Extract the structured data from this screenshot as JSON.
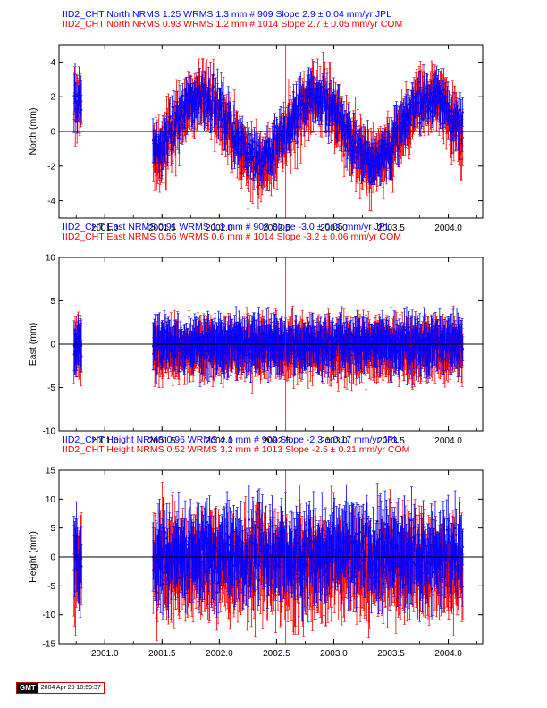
{
  "stamp": {
    "logo": "GMT",
    "timestamp": "2004 Apr 20 10:59:37"
  },
  "colors": {
    "jpl": "#0000ff",
    "com": "#ff0000",
    "axis": "#000000"
  },
  "chart_data": [
    {
      "type": "scatter",
      "title_lines": [
        "IID2_CHT North NRMS 1.25 WRMS  1.3 mm # 909 Slope    2.9 ±  0.04 mm/yr JPL",
        "IID2_CHT North NRMS 0.93 WRMS  1.2 mm # 1014 Slope    2.7 ±  0.05 mm/yr COM"
      ],
      "ylabel": "North (mm)",
      "xlim": [
        2000.6,
        2004.3
      ],
      "ylim": [
        -5,
        5
      ],
      "xticks": [
        2001.0,
        2001.5,
        2002.0,
        2002.5,
        2003.0,
        2003.5,
        2004.0
      ],
      "xticklabels": [
        "2001.0",
        "2001.5",
        "2002.0",
        "2002.5",
        "2003.0",
        "2003.5",
        "2004.0"
      ],
      "yticks": [
        -4,
        -2,
        0,
        2,
        4
      ],
      "yticklabels": [
        "-4",
        "-2",
        "0",
        "2",
        "4"
      ],
      "series": [
        {
          "name": "COM",
          "color": "#ff0000",
          "errbar": 1.2,
          "amp": 1.9,
          "offset": 0.0,
          "noise": 0.9
        },
        {
          "name": "JPL",
          "color": "#0000ff",
          "errbar": 0.9,
          "amp": 1.8,
          "offset": 0.25,
          "noise": 0.75
        }
      ],
      "signal": {
        "kind": "annual",
        "phase": 2001.6
      },
      "spike_x": 2002.58
    },
    {
      "type": "scatter",
      "title_lines": [
        "IID2_CHT East NRMS 0.91 WRMS  1.1 mm # 908 Slope   -3.0 ±  0.05 mm/yr JPL",
        "IID2_CHT East NRMS 0.56 WRMS  0.6 mm # 1014 Slope   -3.2 ±  0.06 mm/yr COM"
      ],
      "ylabel": "East (mm)",
      "xlim": [
        2000.6,
        2004.3
      ],
      "ylim": [
        -10,
        10
      ],
      "xticks": [
        2001.0,
        2001.5,
        2002.0,
        2002.5,
        2003.0,
        2003.5,
        2004.0
      ],
      "xticklabels": [
        "2001.0",
        "2001.5",
        "2002.0",
        "2002.5",
        "2003.0",
        "2003.5",
        "2004.0"
      ],
      "yticks": [
        -10,
        -5,
        0,
        5,
        10
      ],
      "yticklabels": [
        "-10",
        "-5",
        "0",
        "5",
        "10"
      ],
      "series": [
        {
          "name": "COM",
          "color": "#ff0000",
          "errbar": 2.6,
          "amp": 0.3,
          "offset": -0.5,
          "noise": 1.0
        },
        {
          "name": "JPL",
          "color": "#0000ff",
          "errbar": 2.2,
          "amp": 0.3,
          "offset": 0.0,
          "noise": 1.1
        }
      ],
      "signal": {
        "kind": "flat",
        "phase": 2001.6
      },
      "spike_x": 2002.58
    },
    {
      "type": "scatter",
      "title_lines": [
        "IID2_CHT Height NRMS 0.96 WRMS  4.1 mm # 909 Slope   -2.3 ±  0.17 mm/yr JPL",
        "IID2_CHT Height NRMS 0.52 WRMS  3.2 mm # 1013 Slope   -2.5 ±  0.21 mm/yr COM"
      ],
      "ylabel": "Height (mm)",
      "xlim": [
        2000.6,
        2004.3
      ],
      "ylim": [
        -15,
        15
      ],
      "xticks": [
        2001.0,
        2001.5,
        2002.0,
        2002.5,
        2003.0,
        2003.5,
        2004.0
      ],
      "xticklabels": [
        "2001.0",
        "2001.5",
        "2002.0",
        "2002.5",
        "2003.0",
        "2003.5",
        "2004.0"
      ],
      "yticks": [
        -15,
        -10,
        -5,
        0,
        5,
        10,
        15
      ],
      "yticklabels": [
        "-15",
        "-10",
        "-5",
        "0",
        "5",
        "10",
        "15"
      ],
      "series": [
        {
          "name": "COM",
          "color": "#ff0000",
          "errbar": 6.0,
          "amp": 1.0,
          "offset": -1.5,
          "noise": 3.5
        },
        {
          "name": "JPL",
          "color": "#0000ff",
          "errbar": 5.0,
          "amp": 1.0,
          "offset": 0.5,
          "noise": 3.8
        }
      ],
      "signal": {
        "kind": "flat",
        "phase": 2001.6
      },
      "spike_x": 2002.58
    }
  ],
  "data_segments": [
    [
      2000.73,
      2000.8
    ],
    [
      2001.42,
      2004.13
    ]
  ]
}
